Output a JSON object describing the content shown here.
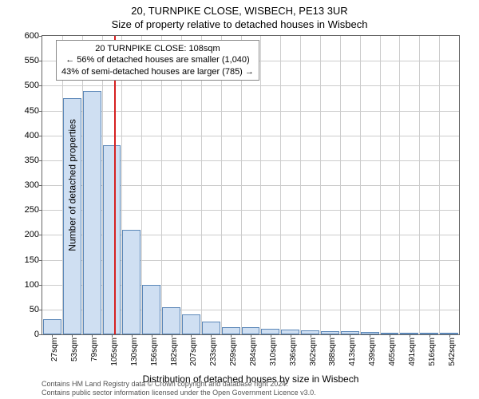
{
  "title": "20, TURNPIKE CLOSE, WISBECH, PE13 3UR",
  "subtitle": "Size of property relative to detached houses in Wisbech",
  "chart": {
    "type": "histogram",
    "ylabel": "Number of detached properties",
    "xlabel": "Distribution of detached houses by size in Wisbech",
    "ylim": [
      0,
      600
    ],
    "ytick_step": 50,
    "background_color": "#ffffff",
    "grid_color": "#cccccc",
    "axis_color": "#666666",
    "bar_fill": "#cfdff2",
    "bar_border": "#5b87b8",
    "marker_color": "#d62020",
    "marker_value_sqm": 108,
    "categories": [
      "27sqm",
      "53sqm",
      "79sqm",
      "105sqm",
      "130sqm",
      "156sqm",
      "182sqm",
      "207sqm",
      "233sqm",
      "259sqm",
      "284sqm",
      "310sqm",
      "336sqm",
      "362sqm",
      "388sqm",
      "413sqm",
      "439sqm",
      "465sqm",
      "491sqm",
      "516sqm",
      "542sqm"
    ],
    "values": [
      30,
      475,
      490,
      380,
      210,
      100,
      55,
      40,
      25,
      15,
      14,
      12,
      10,
      8,
      7,
      6,
      5,
      4,
      4,
      3,
      3
    ],
    "bar_rel_width": 0.92,
    "title_fontsize": 13,
    "label_fontsize": 12,
    "tick_fontsize": 11
  },
  "annotation": {
    "line1": "20 TURNPIKE CLOSE: 108sqm",
    "line2": "← 56% of detached houses are smaller (1,040)",
    "line3": "43% of semi-detached houses are larger (785) →",
    "border_color": "#888888",
    "bg": "#ffffff"
  },
  "footer": {
    "line1": "Contains HM Land Registry data © Crown copyright and database right 2024.",
    "line2": "Contains public sector information licensed under the Open Government Licence v3.0."
  }
}
